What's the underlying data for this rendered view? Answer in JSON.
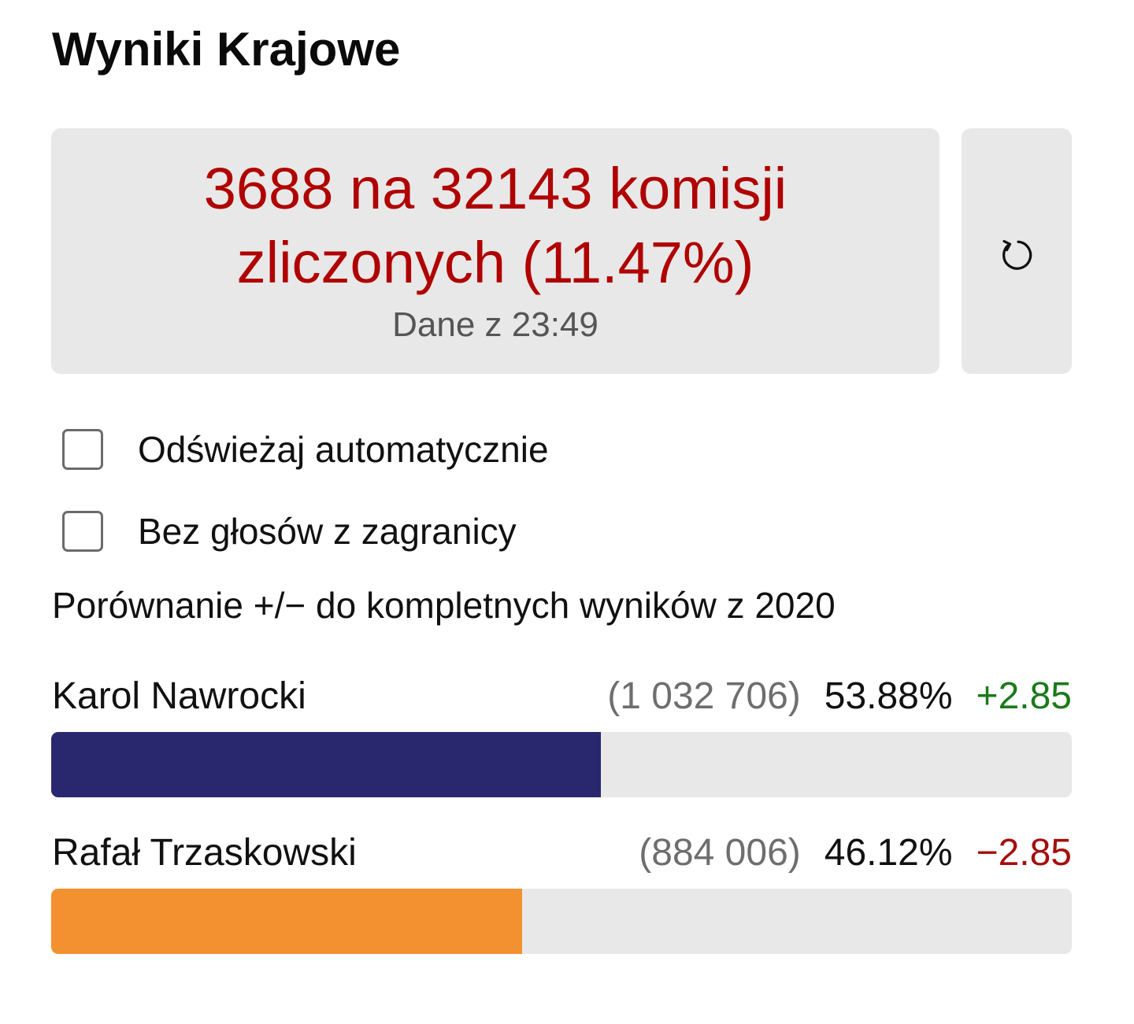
{
  "page": {
    "title": "Wyniki Krajowe"
  },
  "status": {
    "line1": "3688 na 32143 komisji",
    "line2": "zliczonych (11.47%)",
    "updated": "Dane z 23:49",
    "color": "#b00000"
  },
  "refresh": {
    "icon": "refresh-icon"
  },
  "options": [
    {
      "label": "Odświeżaj automatycznie",
      "checked": false
    },
    {
      "label": "Bez głosów z zagranicy",
      "checked": false
    }
  ],
  "comparison_note": "Porównanie +/− do kompletnych wyników z 2020",
  "candidates": [
    {
      "name": "Karol Nawrocki",
      "votes": "(1 032 706)",
      "percent": "53.88%",
      "percent_value": 53.88,
      "delta": "+2.85",
      "color": "#29286f",
      "delta_color": "#1a7a1a"
    },
    {
      "name": "Rafał Trzaskowski",
      "votes": "(884 006)",
      "percent": "46.12%",
      "percent_value": 46.12,
      "delta": "−2.85",
      "color": "#f39130",
      "delta_color": "#a50e0e"
    }
  ]
}
